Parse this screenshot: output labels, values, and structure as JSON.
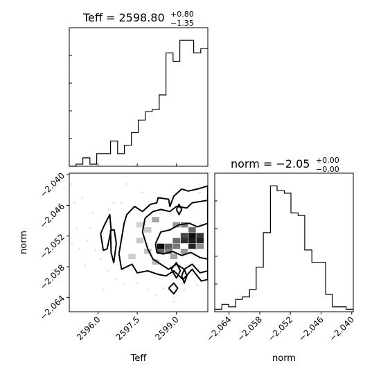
{
  "chart_data": [
    {
      "type": "histogram",
      "title_prefix": "Teff = 2598.80",
      "title_sup": "+0.80",
      "title_sub": "−1.35",
      "xlim": [
        2594.9,
        2600.2
      ],
      "bin_edges": [
        2594.9,
        2595.16,
        2595.42,
        2595.69,
        2595.95,
        2596.22,
        2596.48,
        2596.75,
        2597.01,
        2597.28,
        2597.54,
        2597.81,
        2598.07,
        2598.34,
        2598.6,
        2598.87,
        2599.13,
        2599.4,
        2599.66,
        2599.93,
        2600.2
      ],
      "counts": [
        0,
        0.5,
        2,
        0.5,
        3,
        3,
        6,
        3,
        5,
        8,
        11,
        13,
        13.5,
        17,
        27,
        25,
        30,
        30,
        27,
        28
      ]
    },
    {
      "type": "histogram",
      "title_prefix": "norm = −2.05",
      "title_sup": "+0.00",
      "title_sub": "−0.00",
      "xlim": [
        -2.0668,
        -2.0397
      ],
      "xlabel": "norm",
      "xticks": [
        "−2.064",
        "−2.058",
        "−2.052",
        "−2.046",
        "−2.040"
      ],
      "xtick_values": [
        -2.064,
        -2.058,
        -2.052,
        -2.046,
        -2.04
      ],
      "bin_edges": [
        -2.0668,
        -2.0654,
        -2.0641,
        -2.0627,
        -2.0614,
        -2.06,
        -2.0587,
        -2.0573,
        -2.0559,
        -2.0546,
        -2.0532,
        -2.0519,
        -2.0505,
        -2.0492,
        -2.0478,
        -2.0465,
        -2.0451,
        -2.0438,
        -2.0424,
        -2.0411,
        -2.0397
      ],
      "counts": [
        1,
        3,
        2,
        5,
        6,
        9,
        18,
        32,
        51,
        49,
        48,
        40,
        39,
        25,
        20,
        20,
        7,
        2,
        2,
        1
      ]
    },
    {
      "type": "scatter",
      "xlabel": "Teff",
      "ylabel": "norm",
      "xlim": [
        2594.9,
        2600.2
      ],
      "ylim": [
        -2.0668,
        -2.0397
      ],
      "xticks": [
        "2596.0",
        "2597.5",
        "2599.0"
      ],
      "xtick_values": [
        2596.0,
        2597.5,
        2599.0
      ],
      "yticks": [
        "−2.040",
        "−2.046",
        "−2.052",
        "−2.058",
        "−2.064"
      ],
      "ytick_values": [
        -2.04,
        -2.046,
        -2.052,
        -2.058,
        -2.064
      ],
      "density_cells": [
        {
          "x": 2598.2,
          "y": -2.0488,
          "v": 0.3
        },
        {
          "x": 2599.0,
          "y": -2.0498,
          "v": 0.35
        },
        {
          "x": 2599.3,
          "y": -2.0498,
          "v": 0.45
        },
        {
          "x": 2599.6,
          "y": -2.0508,
          "v": 0.55
        },
        {
          "x": 2599.3,
          "y": -2.0519,
          "v": 0.7
        },
        {
          "x": 2599.6,
          "y": -2.0519,
          "v": 0.95
        },
        {
          "x": 2599.9,
          "y": -2.0519,
          "v": 0.75
        },
        {
          "x": 2599.0,
          "y": -2.0529,
          "v": 0.55
        },
        {
          "x": 2599.3,
          "y": -2.0529,
          "v": 0.8
        },
        {
          "x": 2599.6,
          "y": -2.0529,
          "v": 0.9
        },
        {
          "x": 2599.9,
          "y": -2.0529,
          "v": 0.85
        },
        {
          "x": 2598.4,
          "y": -2.054,
          "v": 0.95
        },
        {
          "x": 2598.7,
          "y": -2.054,
          "v": 0.6
        },
        {
          "x": 2599.0,
          "y": -2.054,
          "v": 0.5
        },
        {
          "x": 2599.6,
          "y": -2.054,
          "v": 0.85
        },
        {
          "x": 2599.9,
          "y": -2.054,
          "v": 0.4
        },
        {
          "x": 2598.4,
          "y": -2.055,
          "v": 0.6
        },
        {
          "x": 2598.7,
          "y": -2.055,
          "v": 0.45
        },
        {
          "x": 2599.3,
          "y": -2.055,
          "v": 0.35
        },
        {
          "x": 2598.9,
          "y": -2.056,
          "v": 0.3
        },
        {
          "x": 2597.9,
          "y": -2.0508,
          "v": 0.15
        },
        {
          "x": 2597.6,
          "y": -2.0529,
          "v": 0.15
        },
        {
          "x": 2597.9,
          "y": -2.055,
          "v": 0.18
        },
        {
          "x": 2597.3,
          "y": -2.056,
          "v": 0.12
        },
        {
          "x": 2598.2,
          "y": -2.0571,
          "v": 0.2
        },
        {
          "x": 2597.6,
          "y": -2.0498,
          "v": 0.1
        }
      ],
      "scatter_points": [
        [
          2595.1,
          -2.0455
        ],
        [
          2595.4,
          -2.0445
        ],
        [
          2595.8,
          -2.0475
        ],
        [
          2595.6,
          -2.0528
        ],
        [
          2595.3,
          -2.0545
        ],
        [
          2595.9,
          -2.0548
        ],
        [
          2596.1,
          -2.0565
        ],
        [
          2595.5,
          -2.0578
        ],
        [
          2596.4,
          -2.0588
        ],
        [
          2596.7,
          -2.0605
        ],
        [
          2597.0,
          -2.0615
        ],
        [
          2596.2,
          -2.0625
        ],
        [
          2597.5,
          -2.0612
        ],
        [
          2597.9,
          -2.0625
        ],
        [
          2598.2,
          -2.0635
        ],
        [
          2598.5,
          -2.0622
        ],
        [
          2599.3,
          -2.0625
        ],
        [
          2599.8,
          -2.0615
        ],
        [
          2599.1,
          -2.0585
        ],
        [
          2596.9,
          -2.0455
        ],
        [
          2596.4,
          -2.0468
        ],
        [
          2597.1,
          -2.0418
        ],
        [
          2595.2,
          -2.0505
        ],
        [
          2595.7,
          -2.0505
        ],
        [
          2596.2,
          -2.0515
        ],
        [
          2594.98,
          -2.0418
        ],
        [
          2595.0,
          -2.0535
        ],
        [
          2596.6,
          -2.0455
        ],
        [
          2597.7,
          -2.0435
        ],
        [
          2599.9,
          -2.0435
        ],
        [
          2598.8,
          -2.0452
        ],
        [
          2599.6,
          -2.0595
        ],
        [
          2599.4,
          -2.0602
        ],
        [
          2598.9,
          -2.0648
        ],
        [
          2596.8,
          -2.0575
        ]
      ],
      "contours": [
        [
          [
            2596.1,
            -2.0515
          ],
          [
            2596.25,
            -2.0498
          ],
          [
            2596.45,
            -2.0478
          ],
          [
            2596.5,
            -2.0508
          ],
          [
            2596.35,
            -2.0545
          ],
          [
            2596.2,
            -2.0548
          ],
          [
            2596.1,
            -2.0515
          ]
        ],
        [
          [
            2596.48,
            -2.0508
          ],
          [
            2596.62,
            -2.0508
          ],
          [
            2596.7,
            -2.0535
          ],
          [
            2596.6,
            -2.0572
          ],
          [
            2596.5,
            -2.0552
          ],
          [
            2596.48,
            -2.0508
          ]
        ],
        [
          [
            2596.8,
            -2.0555
          ],
          [
            2597.0,
            -2.0495
          ],
          [
            2597.1,
            -2.0478
          ],
          [
            2597.4,
            -2.0462
          ],
          [
            2597.7,
            -2.0472
          ],
          [
            2598.0,
            -2.0458
          ],
          [
            2598.25,
            -2.0455
          ],
          [
            2598.3,
            -2.0445
          ],
          [
            2598.7,
            -2.0448
          ],
          [
            2598.75,
            -2.0462
          ],
          [
            2598.9,
            -2.0442
          ],
          [
            2599.2,
            -2.0428
          ],
          [
            2599.45,
            -2.0432
          ],
          [
            2599.8,
            -2.0428
          ],
          [
            2600.2,
            -2.0422
          ],
          [
            2600.2,
            -2.0605
          ],
          [
            2599.95,
            -2.0608
          ],
          [
            2599.6,
            -2.0585
          ],
          [
            2599.25,
            -2.0605
          ],
          [
            2598.9,
            -2.0588
          ],
          [
            2598.6,
            -2.0598
          ],
          [
            2598.3,
            -2.0595
          ],
          [
            2597.9,
            -2.0588
          ],
          [
            2597.5,
            -2.0592
          ],
          [
            2597.3,
            -2.0575
          ],
          [
            2596.9,
            -2.0585
          ],
          [
            2596.8,
            -2.0555
          ]
        ],
        [
          [
            2597.8,
            -2.0485
          ],
          [
            2598.1,
            -2.0472
          ],
          [
            2598.4,
            -2.0468
          ],
          [
            2598.75,
            -2.0472
          ],
          [
            2599.0,
            -2.0462
          ],
          [
            2599.4,
            -2.0465
          ],
          [
            2599.6,
            -2.0455
          ],
          [
            2600.2,
            -2.045
          ],
          [
            2600.2,
            -2.0588
          ],
          [
            2599.9,
            -2.0592
          ],
          [
            2599.6,
            -2.0575
          ],
          [
            2599.3,
            -2.0585
          ],
          [
            2599.0,
            -2.0575
          ],
          [
            2598.7,
            -2.0585
          ],
          [
            2598.4,
            -2.0575
          ],
          [
            2598.1,
            -2.0565
          ],
          [
            2597.9,
            -2.0545
          ],
          [
            2597.7,
            -2.0512
          ],
          [
            2597.8,
            -2.0485
          ]
        ],
        [
          [
            2598.2,
            -2.0535
          ],
          [
            2598.4,
            -2.0512
          ],
          [
            2598.75,
            -2.0508
          ],
          [
            2599.1,
            -2.0498
          ],
          [
            2599.5,
            -2.0495
          ],
          [
            2599.8,
            -2.0502
          ],
          [
            2600.2,
            -2.0495
          ],
          [
            2600.2,
            -2.0565
          ],
          [
            2599.9,
            -2.0562
          ],
          [
            2599.55,
            -2.0552
          ],
          [
            2599.2,
            -2.0558
          ],
          [
            2598.85,
            -2.055
          ],
          [
            2598.5,
            -2.0555
          ],
          [
            2598.25,
            -2.0552
          ],
          [
            2598.2,
            -2.0535
          ]
        ],
        [
          [
            2598.8,
            -2.0585
          ],
          [
            2599.0,
            -2.0572
          ],
          [
            2599.15,
            -2.0588
          ],
          [
            2599.0,
            -2.0602
          ],
          [
            2598.8,
            -2.0585
          ]
        ],
        [
          [
            2599.2,
            -2.0598
          ],
          [
            2599.3,
            -2.0585
          ],
          [
            2599.4,
            -2.0598
          ],
          [
            2599.3,
            -2.0612
          ],
          [
            2599.2,
            -2.0598
          ]
        ],
        [
          [
            2598.7,
            -2.0622
          ],
          [
            2598.9,
            -2.0612
          ],
          [
            2599.05,
            -2.0622
          ],
          [
            2598.9,
            -2.0633
          ],
          [
            2598.7,
            -2.0622
          ]
        ],
        [
          [
            2599.0,
            -2.0468
          ],
          [
            2599.1,
            -2.0458
          ],
          [
            2599.2,
            -2.0468
          ],
          [
            2599.1,
            -2.0478
          ],
          [
            2599.0,
            -2.0468
          ]
        ]
      ]
    }
  ]
}
